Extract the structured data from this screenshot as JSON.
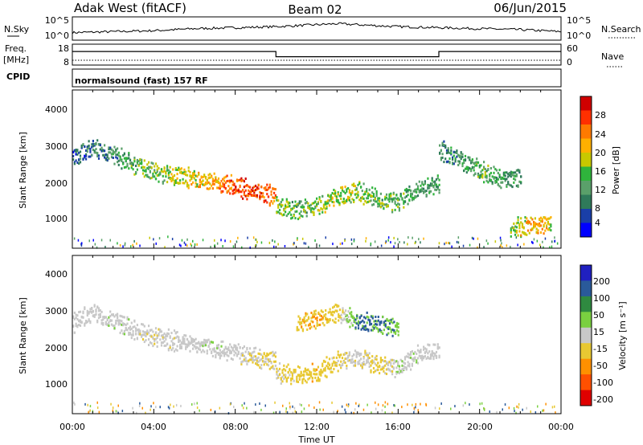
{
  "header": {
    "station": "Adak West (fitACF)",
    "beam": "Beam 02",
    "date": "06/Jun/2015"
  },
  "top_panel": {
    "left_label": "N.Sky",
    "left_ticks": [
      "10^5",
      "10^0"
    ],
    "right_label": "N.Search",
    "right_ticks": [
      "10^5",
      "10^0"
    ]
  },
  "freq_panel": {
    "label_line1": "Freq.",
    "label_line2": "[MHz]",
    "left_ticks": [
      "18",
      "8"
    ],
    "right_label": "Nave",
    "right_ticks": [
      "60",
      "0"
    ],
    "cpid_label": "CPID",
    "cpid_text": "normalsound (fast) 157 RF"
  },
  "power_panel": {
    "ylabel": "Slant Range [km]",
    "yticks": [
      "4000",
      "3000",
      "2000",
      "1000"
    ],
    "colorbar_label": "Power [dB]",
    "colorbar_ticks": [
      "28",
      "24",
      "20",
      "16",
      "12",
      "8",
      "4"
    ]
  },
  "velocity_panel": {
    "ylabel": "Slant Range [km]",
    "yticks": [
      "4000",
      "3000",
      "2000",
      "1000"
    ],
    "colorbar_label": "Velocity [m s⁻¹]",
    "colorbar_ticks": [
      "200",
      "100",
      "50",
      "15",
      "-15",
      "-50",
      "-100",
      "-200"
    ]
  },
  "xaxis": {
    "label": "Time UT",
    "ticks": [
      "00:00",
      "04:00",
      "08:00",
      "12:00",
      "16:00",
      "20:00",
      "00:00"
    ]
  },
  "colors": {
    "power_scale": [
      "#0000ff",
      "#1a3fa8",
      "#2f7a5a",
      "#5aa06a",
      "#2fb43c",
      "#c8c800",
      "#ffb000",
      "#ff7a00",
      "#ff3000",
      "#d00000"
    ],
    "velocity_scale": [
      "#2020c0",
      "#2a5a9a",
      "#2f8a40",
      "#7ad040",
      "#c8c8c8",
      "#e8c832",
      "#ff9000",
      "#ff5000",
      "#e00000"
    ],
    "trace": "#000000"
  },
  "chart_data": [
    {
      "type": "line",
      "title": "N.Sky / N.Search",
      "xlabel": "Time UT",
      "ylabel": "N.Sky",
      "xlim": [
        0,
        24
      ],
      "x": [
        0,
        2,
        4,
        6,
        8,
        10,
        12,
        13,
        14,
        16,
        18,
        20,
        22,
        24
      ],
      "series": [
        {
          "name": "N.Sky",
          "values": [
            0.3,
            0.35,
            0.4,
            0.5,
            0.55,
            0.6,
            0.7,
            0.75,
            0.7,
            0.6,
            0.55,
            0.5,
            0.45,
            0.35
          ]
        }
      ]
    },
    {
      "type": "line",
      "title": "Freq. / Nave",
      "xlabel": "Time UT",
      "ylabel": "Freq. [MHz]",
      "xlim": [
        0,
        24
      ],
      "ylim": [
        8,
        18
      ],
      "x": [
        0,
        10,
        10,
        18,
        18,
        24
      ],
      "series": [
        {
          "name": "Freq.",
          "values": [
            14.5,
            14.5,
            12,
            12,
            14.5,
            14.5
          ]
        },
        {
          "name": "Nave",
          "values": [
            10,
            10,
            10,
            10,
            10,
            10
          ]
        }
      ]
    },
    {
      "type": "heatmap",
      "title": "Power",
      "xlabel": "Time UT",
      "ylabel": "Slant Range [km]",
      "xlim": [
        0,
        24
      ],
      "ylim": [
        180,
        4500
      ],
      "colorbar": {
        "label": "Power [dB]",
        "range": [
          0,
          30
        ]
      },
      "features": [
        {
          "x": [
            0,
            1,
            2,
            3,
            4,
            5,
            6,
            7,
            8,
            9,
            10
          ],
          "range_km": [
            2650,
            2900,
            2700,
            2450,
            2250,
            2150,
            2050,
            1950,
            1850,
            1700,
            1600
          ],
          "value_db": [
            6,
            7,
            9,
            12,
            14,
            16,
            18,
            20,
            24,
            26,
            22
          ]
        },
        {
          "x": [
            10,
            11,
            12,
            13,
            14,
            15,
            16,
            17,
            18
          ],
          "range_km": [
            1300,
            1200,
            1300,
            1600,
            1700,
            1500,
            1400,
            1800,
            1900
          ],
          "value_db": [
            14,
            12,
            14,
            16,
            15,
            13,
            12,
            11,
            10
          ]
        },
        {
          "x": [
            18,
            19,
            20,
            21,
            22
          ],
          "range_km": [
            2850,
            2600,
            2300,
            2050,
            2100
          ],
          "value_db": [
            8,
            10,
            12,
            11,
            9
          ]
        },
        {
          "x": [
            21.5,
            22,
            23,
            23.5
          ],
          "range_km": [
            700,
            750,
            800,
            850
          ],
          "value_db": [
            14,
            18,
            20,
            16
          ]
        }
      ]
    },
    {
      "type": "heatmap",
      "title": "Velocity",
      "xlabel": "Time UT",
      "ylabel": "Slant Range [km]",
      "xlim": [
        0,
        24
      ],
      "ylim": [
        180,
        4500
      ],
      "colorbar": {
        "label": "Velocity [m s⁻¹]",
        "range": [
          -200,
          200
        ]
      },
      "features": [
        {
          "x": [
            0,
            1,
            2,
            3,
            4,
            5,
            6,
            7,
            8,
            9,
            10
          ],
          "range_km": [
            2650,
            2900,
            2700,
            2450,
            2250,
            2150,
            2050,
            1950,
            1850,
            1700,
            1600
          ],
          "value_ms": [
            0,
            0,
            5,
            0,
            -5,
            0,
            0,
            5,
            0,
            -10,
            -20
          ]
        },
        {
          "x": [
            11,
            12,
            13,
            14,
            15,
            16
          ],
          "range_km": [
            2600,
            2750,
            2900,
            2700,
            2600,
            2500
          ],
          "value_ms": [
            -40,
            -50,
            -30,
            60,
            50,
            40
          ]
        },
        {
          "x": [
            10,
            11,
            12,
            13,
            14,
            15,
            16,
            17,
            18
          ],
          "range_km": [
            1300,
            1200,
            1300,
            1600,
            1700,
            1500,
            1400,
            1800,
            1900
          ],
          "value_ms": [
            -20,
            -30,
            -40,
            -20,
            0,
            -30,
            10,
            0,
            0
          ]
        }
      ]
    }
  ]
}
